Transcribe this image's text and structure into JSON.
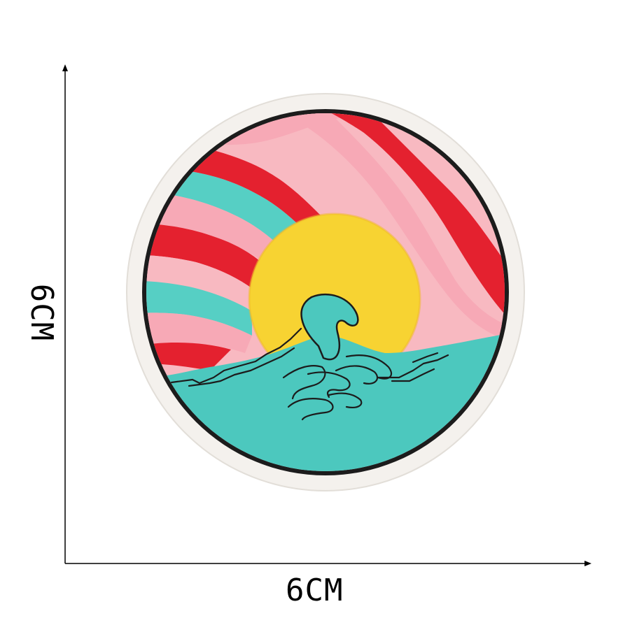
{
  "dimensions": {
    "width_label": "6CM",
    "height_label": "6CM"
  },
  "patch": {
    "colors": {
      "border": "#f4f1ed",
      "outline": "#1c1c1c",
      "pink": "#f7a9b6",
      "light_pink": "#f8b9c1",
      "red": "#e4212f",
      "teal": "#56cfc4",
      "sun": "#f7d332",
      "sea": "#4cc8be"
    }
  }
}
